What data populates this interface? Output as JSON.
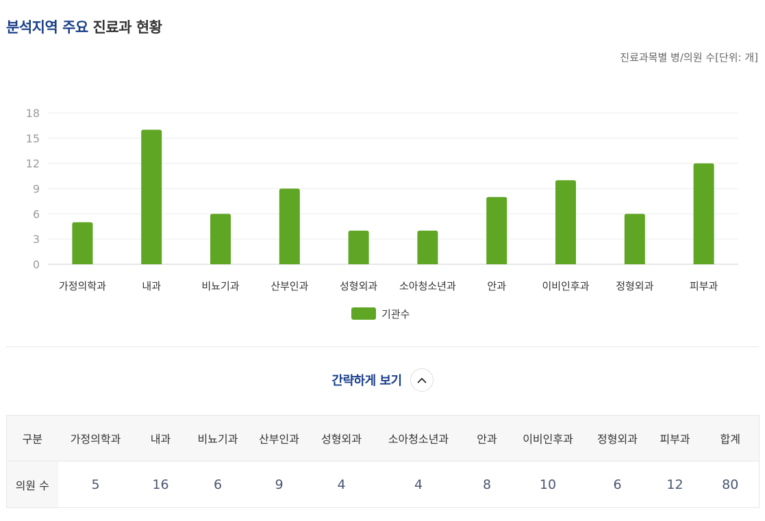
{
  "header": {
    "title_accent": "분석지역 주요",
    "title_rest": "진료과 현황",
    "unit_note": "진료과목별 병/의원 수[단위: 개]"
  },
  "chart_data": {
    "type": "bar",
    "categories": [
      "가정의학과",
      "내과",
      "비뇨기과",
      "산부인과",
      "성형외과",
      "소아청소년과",
      "안과",
      "이비인후과",
      "정형외과",
      "피부과"
    ],
    "series": [
      {
        "name": "기관수",
        "values": [
          5,
          16,
          6,
          9,
          4,
          4,
          8,
          10,
          6,
          12
        ],
        "color": "#5ea623"
      }
    ],
    "ylim": [
      0,
      18
    ],
    "yticks": [
      0,
      3,
      6,
      9,
      12,
      15,
      18
    ],
    "grid": true,
    "legend": "bottom-center"
  },
  "toggle": {
    "label": "간략하게 보기",
    "icon": "chevron-up-icon"
  },
  "table": {
    "corner": "구분",
    "headers": [
      "가정의학과",
      "내과",
      "비뇨기과",
      "산부인과",
      "성형외과",
      "소아청소년과",
      "안과",
      "이비인후과",
      "정형외과",
      "피부과",
      "합계"
    ],
    "row_label": "의원 수",
    "values": [
      "5",
      "16",
      "6",
      "9",
      "4",
      "4",
      "8",
      "10",
      "6",
      "12",
      "80"
    ]
  }
}
